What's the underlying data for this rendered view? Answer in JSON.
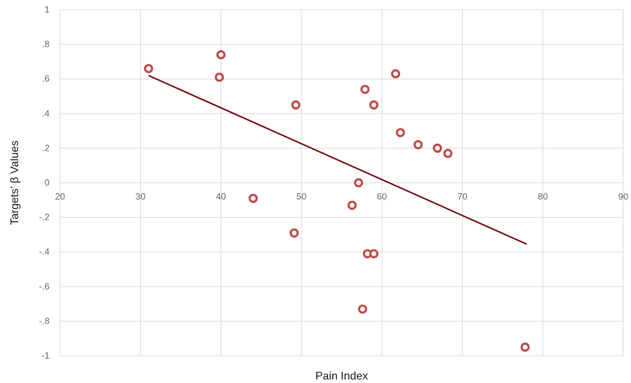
{
  "chart_data": {
    "type": "scatter",
    "title": "",
    "xlabel": "Pain Index",
    "ylabel": "Targets’ β Values",
    "xlim": [
      20,
      90
    ],
    "ylim": [
      -1,
      1
    ],
    "x_ticks": [
      20,
      30,
      40,
      50,
      60,
      70,
      80,
      90
    ],
    "x_tick_labels": [
      "20",
      "30",
      "40",
      "50",
      "60",
      "70",
      "80",
      "90"
    ],
    "y_ticks": [
      1,
      0.8,
      0.6,
      0.4,
      0.2,
      0,
      -0.2,
      -0.4,
      -0.6,
      -0.8,
      -1
    ],
    "y_tick_labels": [
      "1",
      ".8",
      ".6",
      ".4",
      ".2",
      "0",
      "-.2",
      "-.4",
      "-.6",
      "-.8",
      "-1"
    ],
    "grid": true,
    "legend": "none",
    "marker_color": "#c0504d",
    "trendline_color": "#7b1416",
    "grid_color": "#d9d9d9",
    "points": [
      {
        "x": 31.0,
        "y": 0.66
      },
      {
        "x": 40.0,
        "y": 0.74
      },
      {
        "x": 39.8,
        "y": 0.61
      },
      {
        "x": 44.0,
        "y": -0.09
      },
      {
        "x": 49.3,
        "y": 0.45
      },
      {
        "x": 49.1,
        "y": -0.29
      },
      {
        "x": 56.3,
        "y": -0.13
      },
      {
        "x": 57.1,
        "y": 0.0
      },
      {
        "x": 57.9,
        "y": 0.54
      },
      {
        "x": 59.0,
        "y": 0.45
      },
      {
        "x": 61.7,
        "y": 0.63
      },
      {
        "x": 62.3,
        "y": 0.29
      },
      {
        "x": 64.5,
        "y": 0.22
      },
      {
        "x": 66.9,
        "y": 0.2
      },
      {
        "x": 68.2,
        "y": 0.17
      },
      {
        "x": 58.2,
        "y": -0.41
      },
      {
        "x": 59.0,
        "y": -0.41
      },
      {
        "x": 57.6,
        "y": -0.73
      },
      {
        "x": 77.8,
        "y": -0.95
      }
    ],
    "trendline": [
      {
        "x": 31.0,
        "y": 0.62
      },
      {
        "x": 78.0,
        "y": -0.355
      }
    ]
  }
}
